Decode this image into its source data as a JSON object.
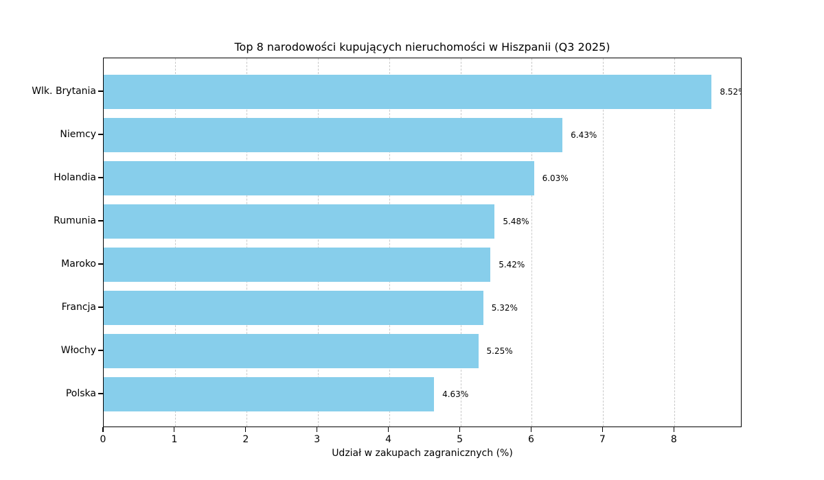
{
  "chart_data": {
    "type": "bar",
    "orientation": "horizontal",
    "title": "Top 8 narodowości kupujących nieruchomości w Hiszpanii (Q3 2025)",
    "xlabel": "Udział w zakupach zagranicznych (%)",
    "categories": [
      "Wlk. Brytania",
      "Niemcy",
      "Holandia",
      "Rumunia",
      "Maroko",
      "Francja",
      "Włochy",
      "Polska"
    ],
    "values": [
      8.52,
      6.43,
      6.03,
      5.48,
      5.42,
      5.32,
      5.25,
      4.63
    ],
    "value_labels": [
      "8.52%",
      "6.43%",
      "6.03%",
      "5.48%",
      "5.42%",
      "5.32%",
      "5.25%",
      "4.63%"
    ],
    "x_ticks": [
      "0",
      "1",
      "2",
      "3",
      "4",
      "5",
      "6",
      "7",
      "8"
    ],
    "xlim": [
      0,
      8.95
    ],
    "grid": "vertical-dashed",
    "legend": null,
    "colors": {
      "bar": "#87CEEB",
      "grid": "#c9c9c9",
      "spine": "#000000",
      "text": "#000000",
      "background": "#ffffff"
    }
  }
}
